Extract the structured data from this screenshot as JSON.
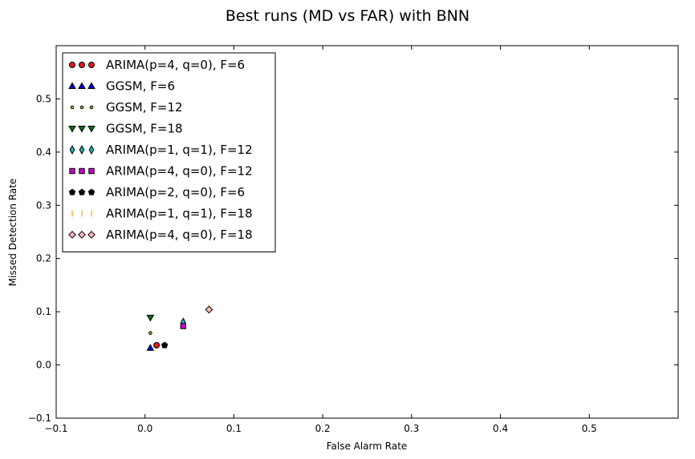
{
  "chart_data": {
    "type": "scatter",
    "title": "Best runs (MD vs FAR) with BNN",
    "xlabel": "False Alarm Rate",
    "ylabel": "Missed Detection Rate",
    "xlim": [
      -0.1,
      0.6
    ],
    "ylim": [
      -0.1,
      0.6
    ],
    "xticks": [
      "−0.1",
      "0.0",
      "0.1",
      "0.2",
      "0.3",
      "0.4",
      "0.5"
    ],
    "yticks": [
      "−0.1",
      "0.0",
      "0.1",
      "0.2",
      "0.3",
      "0.4",
      "0.5"
    ],
    "xtick_values": [
      -0.1,
      0.0,
      0.1,
      0.2,
      0.3,
      0.4,
      0.5
    ],
    "ytick_values": [
      -0.1,
      0.0,
      0.1,
      0.2,
      0.3,
      0.4,
      0.5
    ],
    "grid": false,
    "legend_position": "upper-left",
    "series": [
      {
        "name": "ARIMA(p=4, q=0), F=6",
        "marker": "circle",
        "color": "#e31a1c",
        "points": [
          {
            "x": 0.013,
            "y": 0.037
          }
        ]
      },
      {
        "name": "GGSM, F=6",
        "marker": "triangle-up",
        "color": "#0000cc",
        "points": [
          {
            "x": 0.006,
            "y": 0.032
          }
        ]
      },
      {
        "name": "GGSM, F=12",
        "marker": "small-circle",
        "color": "#b5b520",
        "points": [
          {
            "x": 0.006,
            "y": 0.06
          }
        ]
      },
      {
        "name": "GGSM, F=18",
        "marker": "triangle-down",
        "color": "#0a6e0a",
        "points": [
          {
            "x": 0.006,
            "y": 0.089
          }
        ]
      },
      {
        "name": "ARIMA(p=1, q=1), F=12",
        "marker": "thin-diamond",
        "color": "#20b2aa",
        "points": [
          {
            "x": 0.043,
            "y": 0.08
          }
        ]
      },
      {
        "name": "ARIMA(p=4, q=0), F=12",
        "marker": "square",
        "color": "#cc00cc",
        "points": [
          {
            "x": 0.043,
            "y": 0.073
          }
        ]
      },
      {
        "name": "ARIMA(p=2, q=0), F=6",
        "marker": "pentagon",
        "color": "#000000",
        "points": [
          {
            "x": 0.022,
            "y": 0.037
          }
        ]
      },
      {
        "name": "ARIMA(p=1, q=1), F=18",
        "marker": "vline",
        "color": "#ffa500",
        "points": [
          {
            "x": 0.072,
            "y": 0.107
          }
        ]
      },
      {
        "name": "ARIMA(p=4, q=0), F=18",
        "marker": "diamond",
        "color": "#ffb6c1",
        "points": [
          {
            "x": 0.072,
            "y": 0.104
          }
        ]
      }
    ]
  }
}
